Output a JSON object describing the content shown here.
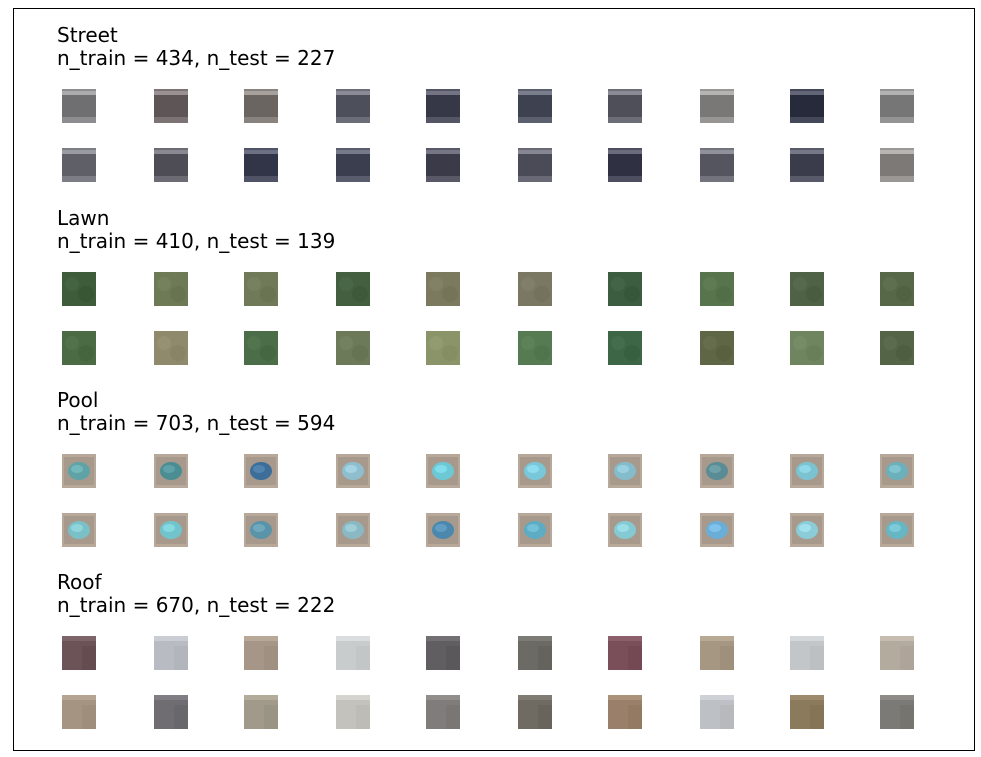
{
  "sections": [
    {
      "title": "Street",
      "counts": "n_train = 434, n_test = 227",
      "thumbnail_colors": [
        [
          "#6f6e70",
          "#5e5556",
          "#6b6562",
          "#4d4f5a",
          "#363847",
          "#3d4150",
          "#4e4f58",
          "#7a7877",
          "#262a3b",
          "#777677"
        ],
        [
          "#5f6067",
          "#4e4c55",
          "#323548",
          "#3b3e4f",
          "#3a3a48",
          "#4a4b57",
          "#2f3142",
          "#54555f",
          "#3b3c4b",
          "#7d7976"
        ]
      ]
    },
    {
      "title": "Lawn",
      "counts": "n_train = 410, n_test = 139",
      "thumbnail_colors": [
        [
          "#3e5c3a",
          "#6e7a55",
          "#707958",
          "#435f3f",
          "#7b7a5f",
          "#7a7862",
          "#3d5d40",
          "#57744d",
          "#4f6245",
          "#566848"
        ],
        [
          "#4b6b45",
          "#8f8a6c",
          "#4b6e48",
          "#6c7a5a",
          "#8b9468",
          "#567b52",
          "#3c6645",
          "#5f6646",
          "#6f8560",
          "#546446"
        ]
      ]
    },
    {
      "title": "Pool",
      "counts": "n_train = 703, n_test = 594",
      "thumbnail_colors": [
        [
          "#5fa3a6",
          "#4a8d93",
          "#3d6e9a",
          "#8fbfcf",
          "#6dc8d6",
          "#78c8da",
          "#85bccb",
          "#5a8c95",
          "#7cc3d2",
          "#6bb0bb"
        ],
        [
          "#7ac0c6",
          "#71c4cc",
          "#5b93a8",
          "#8ab9c3",
          "#4c88ad",
          "#5dacc3",
          "#85c9d2",
          "#6aaed8",
          "#8ccbd8",
          "#66b6c4"
        ]
      ]
    },
    {
      "title": "Roof",
      "counts": "n_train = 670, n_test = 222",
      "thumbnail_colors": [
        [
          "#6b5357",
          "#b8bcc2",
          "#a69687",
          "#c8cccd",
          "#615e62",
          "#6b6a64",
          "#7a4f5a",
          "#a69782",
          "#c2c6c9",
          "#b4ab9f"
        ],
        [
          "#a69482",
          "#6f6d72",
          "#a19a8a",
          "#c4c2bd",
          "#807c7b",
          "#6f6a62",
          "#9a7f6a",
          "#bdc0c4",
          "#8c7a5c",
          "#7c7a76"
        ]
      ]
    }
  ]
}
